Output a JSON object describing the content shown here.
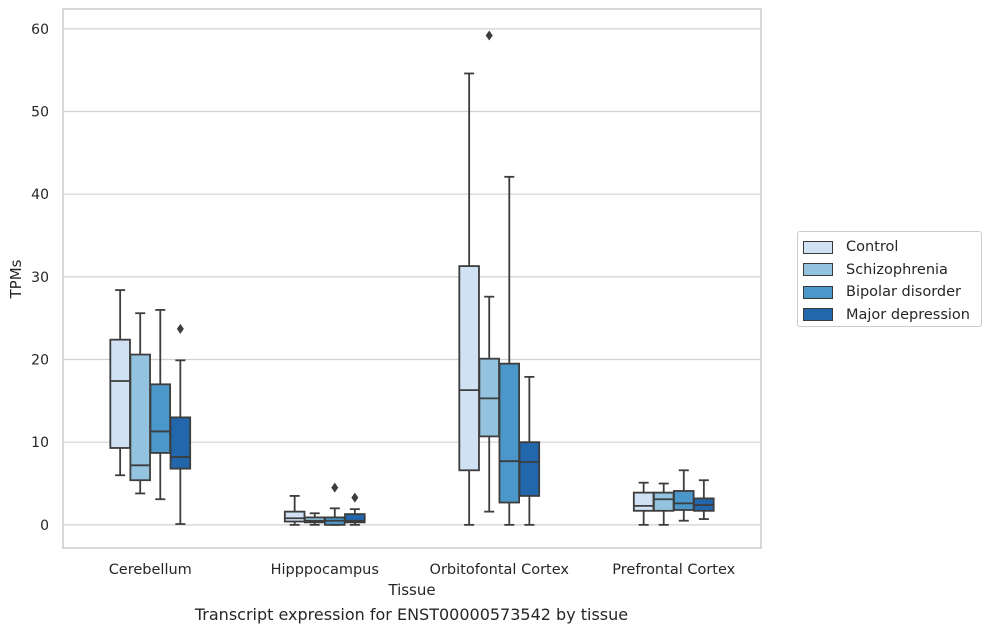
{
  "chart_data": {
    "type": "boxplot",
    "xlabel": "Tissue",
    "ylabel": "TPMs",
    "caption": "Transcript expression for ENST00000573542 by tissue",
    "ylim": [
      -2.8,
      62.4
    ],
    "yticks": [
      0,
      10,
      20,
      30,
      40,
      50,
      60
    ],
    "grid": "horizontal",
    "legend_position": "right",
    "categories": [
      "Cerebellum",
      "Hipppocampus",
      "Orbitofontal Cortex",
      "Prefrontal Cortex"
    ],
    "series": [
      {
        "name": "Control",
        "color": "#cfe1f2",
        "boxes": [
          {
            "whislo": 6.0,
            "q1": 9.3,
            "med": 17.4,
            "q3": 22.4,
            "whishi": 28.4,
            "fliers": []
          },
          {
            "whislo": 0.0,
            "q1": 0.4,
            "med": 0.8,
            "q3": 1.6,
            "whishi": 3.5,
            "fliers": []
          },
          {
            "whislo": 0.0,
            "q1": 6.6,
            "med": 16.3,
            "q3": 31.3,
            "whishi": 54.6,
            "fliers": []
          },
          {
            "whislo": 0.0,
            "q1": 1.7,
            "med": 2.3,
            "q3": 3.9,
            "whishi": 5.1,
            "fliers": []
          }
        ]
      },
      {
        "name": "Schizophrenia",
        "color": "#93c3df",
        "boxes": [
          {
            "whislo": 3.8,
            "q1": 5.4,
            "med": 7.2,
            "q3": 20.6,
            "whishi": 25.6,
            "fliers": []
          },
          {
            "whislo": 0.0,
            "q1": 0.3,
            "med": 0.5,
            "q3": 0.9,
            "whishi": 1.4,
            "fliers": []
          },
          {
            "whislo": 1.6,
            "q1": 10.7,
            "med": 15.3,
            "q3": 20.1,
            "whishi": 27.6,
            "fliers": [
              59.2
            ]
          },
          {
            "whislo": 0.0,
            "q1": 1.7,
            "med": 3.1,
            "q3": 3.9,
            "whishi": 5.0,
            "fliers": []
          }
        ]
      },
      {
        "name": "Bipolar disorder",
        "color": "#4b97c9",
        "boxes": [
          {
            "whislo": 3.1,
            "q1": 8.7,
            "med": 11.3,
            "q3": 17.0,
            "whishi": 26.0,
            "fliers": []
          },
          {
            "whislo": 0.0,
            "q1": 0.0,
            "med": 0.5,
            "q3": 0.9,
            "whishi": 2.0,
            "fliers": [
              4.5
            ]
          },
          {
            "whislo": 0.0,
            "q1": 2.7,
            "med": 7.7,
            "q3": 19.5,
            "whishi": 42.1,
            "fliers": []
          },
          {
            "whislo": 0.5,
            "q1": 1.8,
            "med": 2.6,
            "q3": 4.1,
            "whishi": 6.6,
            "fliers": []
          }
        ]
      },
      {
        "name": "Major depression",
        "color": "#2266ac",
        "boxes": [
          {
            "whislo": 0.1,
            "q1": 6.8,
            "med": 8.2,
            "q3": 13.0,
            "whishi": 19.9,
            "fliers": [
              23.7
            ]
          },
          {
            "whislo": 0.0,
            "q1": 0.3,
            "med": 0.5,
            "q3": 1.3,
            "whishi": 1.9,
            "fliers": [
              3.3
            ]
          },
          {
            "whislo": 0.0,
            "q1": 3.5,
            "med": 7.6,
            "q3": 10.0,
            "whishi": 17.9,
            "fliers": []
          },
          {
            "whislo": 0.7,
            "q1": 1.7,
            "med": 2.4,
            "q3": 3.2,
            "whishi": 5.4,
            "fliers": []
          }
        ]
      }
    ]
  }
}
